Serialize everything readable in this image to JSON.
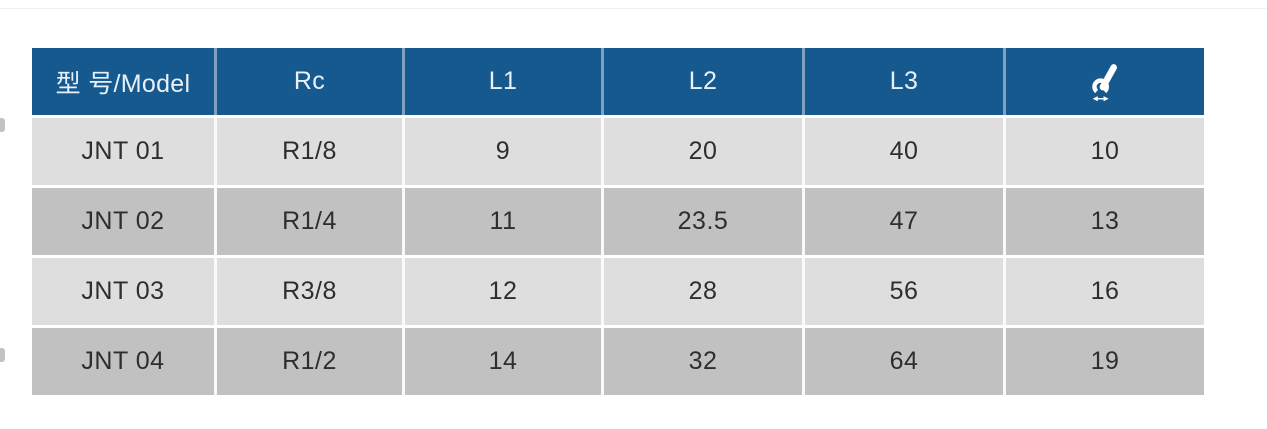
{
  "chart_data": {
    "type": "table",
    "title": "",
    "headers": [
      "型 号/Model",
      "Rc",
      "L1",
      "L2",
      "L3",
      ""
    ],
    "header_icon_column": {
      "index": 5,
      "icon": "wrench-size-icon"
    },
    "rows": [
      [
        "JNT 01",
        "R1/8",
        "9",
        "20",
        "40",
        "10"
      ],
      [
        "JNT 02",
        "R1/4",
        "11",
        "23.5",
        "47",
        "13"
      ],
      [
        "JNT 03",
        "R3/8",
        "12",
        "28",
        "56",
        "16"
      ],
      [
        "JNT 04",
        "R1/2",
        "14",
        "32",
        "64",
        "19"
      ]
    ],
    "layout": {
      "header_position": "top",
      "row_striping": [
        "light-gray",
        "dark-gray"
      ],
      "grid": "white dividers between cells"
    }
  },
  "colors": {
    "header_bg": "#15598f",
    "header_divider": "#7fa0c0",
    "header_text": "#e8f1f9",
    "row_light": "#dedede",
    "row_dark": "#c1c1c1",
    "row_divider": "#fafafa",
    "cell_text": "#2e2e2e",
    "page_bg": "#ffffff"
  }
}
